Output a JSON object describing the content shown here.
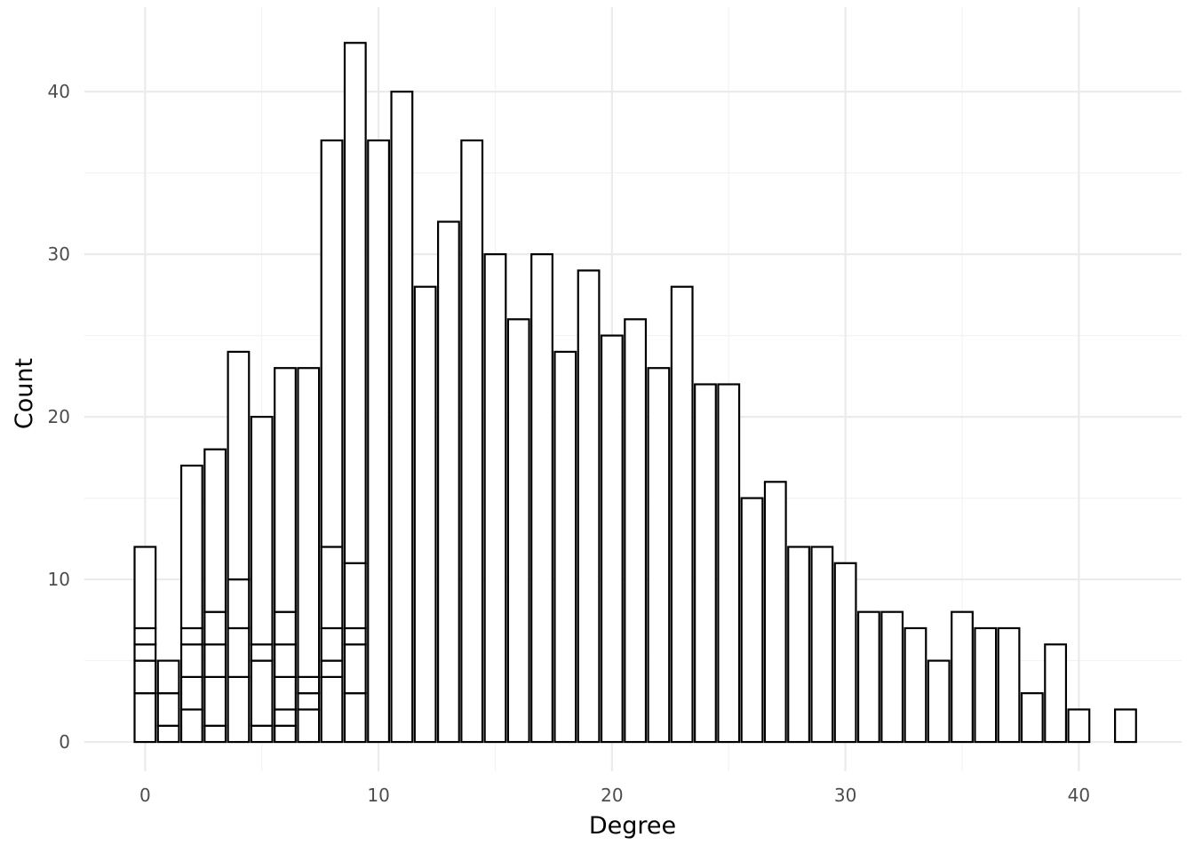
{
  "chart_data": {
    "type": "bar",
    "xlabel": "Degree",
    "ylabel": "Count",
    "xlim": [
      -2.6,
      44.4
    ],
    "ylim": [
      -1.8,
      45.2
    ],
    "x_ticks": [
      0,
      10,
      20,
      30,
      40
    ],
    "x_tick_labels": [
      "0",
      "10",
      "20",
      "30",
      "40"
    ],
    "y_ticks": [
      0,
      10,
      20,
      30,
      40
    ],
    "y_tick_labels": [
      "0",
      "10",
      "20",
      "30",
      "40"
    ],
    "x_minor_ticks": [
      5,
      15,
      25,
      35
    ],
    "y_minor_ticks": [
      5,
      15,
      25,
      35
    ],
    "grid": true,
    "legend": "none",
    "bar_width": 0.9,
    "bars": [
      {
        "x": 0,
        "segments": [
          3,
          2,
          1,
          1,
          5
        ]
      },
      {
        "x": 1,
        "segments": [
          1,
          2,
          2
        ]
      },
      {
        "x": 2,
        "segments": [
          2,
          2,
          2,
          1,
          10
        ]
      },
      {
        "x": 3,
        "segments": [
          1,
          3,
          2,
          2,
          10
        ]
      },
      {
        "x": 4,
        "segments": [
          4,
          3,
          3,
          14
        ]
      },
      {
        "x": 5,
        "segments": [
          1,
          4,
          1,
          14
        ]
      },
      {
        "x": 6,
        "segments": [
          1,
          1,
          2,
          2,
          2,
          15
        ]
      },
      {
        "x": 7,
        "segments": [
          2,
          1,
          1,
          19
        ]
      },
      {
        "x": 8,
        "segments": [
          4,
          1,
          2,
          5,
          25
        ]
      },
      {
        "x": 9,
        "segments": [
          3,
          3,
          1,
          4,
          32
        ]
      },
      {
        "x": 10,
        "segments": [
          37
        ]
      },
      {
        "x": 11,
        "segments": [
          40
        ]
      },
      {
        "x": 12,
        "segments": [
          28
        ]
      },
      {
        "x": 13,
        "segments": [
          32
        ]
      },
      {
        "x": 14,
        "segments": [
          37
        ]
      },
      {
        "x": 15,
        "segments": [
          30
        ]
      },
      {
        "x": 16,
        "segments": [
          26
        ]
      },
      {
        "x": 17,
        "segments": [
          30
        ]
      },
      {
        "x": 18,
        "segments": [
          24
        ]
      },
      {
        "x": 19,
        "segments": [
          29
        ]
      },
      {
        "x": 20,
        "segments": [
          25
        ]
      },
      {
        "x": 21,
        "segments": [
          26
        ]
      },
      {
        "x": 22,
        "segments": [
          23
        ]
      },
      {
        "x": 23,
        "segments": [
          28
        ]
      },
      {
        "x": 24,
        "segments": [
          22
        ]
      },
      {
        "x": 25,
        "segments": [
          22
        ]
      },
      {
        "x": 26,
        "segments": [
          15
        ]
      },
      {
        "x": 27,
        "segments": [
          16
        ]
      },
      {
        "x": 28,
        "segments": [
          12
        ]
      },
      {
        "x": 29,
        "segments": [
          12
        ]
      },
      {
        "x": 30,
        "segments": [
          11
        ]
      },
      {
        "x": 31,
        "segments": [
          8
        ]
      },
      {
        "x": 32,
        "segments": [
          8
        ]
      },
      {
        "x": 33,
        "segments": [
          7
        ]
      },
      {
        "x": 34,
        "segments": [
          5
        ]
      },
      {
        "x": 35,
        "segments": [
          8
        ]
      },
      {
        "x": 36,
        "segments": [
          7
        ]
      },
      {
        "x": 37,
        "segments": [
          7
        ]
      },
      {
        "x": 38,
        "segments": [
          3
        ]
      },
      {
        "x": 39,
        "segments": [
          6
        ]
      },
      {
        "x": 40,
        "segments": [
          2
        ]
      },
      {
        "x": 42,
        "segments": [
          2
        ]
      }
    ]
  }
}
